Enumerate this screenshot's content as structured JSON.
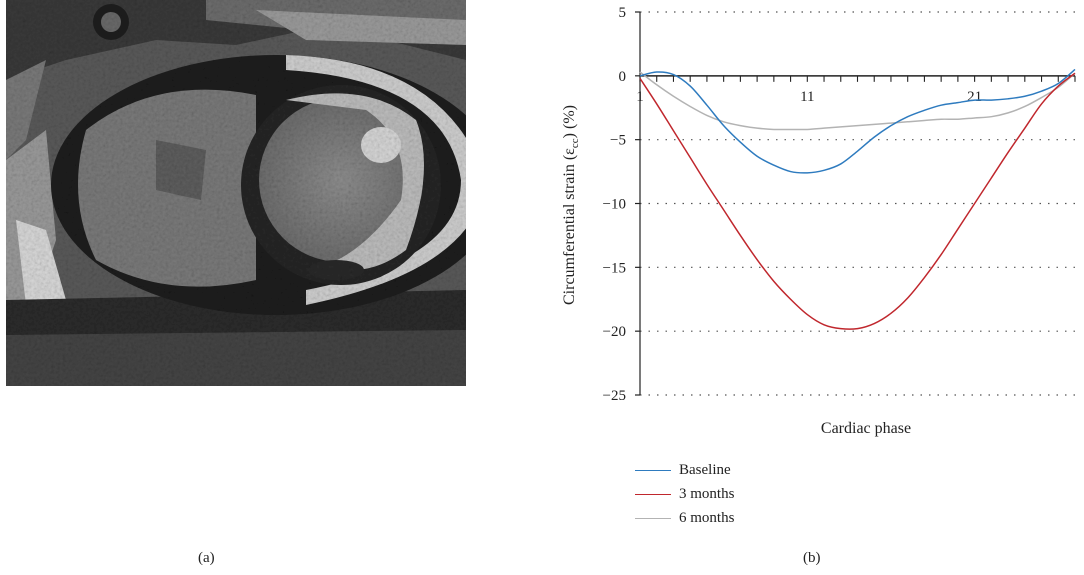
{
  "figure": {
    "panel_a_label": "(a)",
    "panel_b_label": "(b)"
  },
  "mri": {
    "description_icon": "cardiac-mri-short-axis-icon"
  },
  "chart_data": {
    "type": "line",
    "xlabel": "Cardiac phase",
    "ylabel": "Circumferential strain (ε",
    "ylabel_subscript": "cc",
    "ylabel_suffix": ") (%)",
    "xlim": [
      1,
      27
    ],
    "ylim": [
      -25,
      5
    ],
    "x_ticks": [
      1,
      11,
      21
    ],
    "y_ticks": [
      5,
      0,
      -5,
      -10,
      -15,
      -20,
      -25
    ],
    "y_tick_labels": [
      "5",
      "0",
      "−5",
      "−10",
      "−15",
      "−20",
      "−25"
    ],
    "grid": "dotted horizontal",
    "legend_position": "bottom",
    "series": [
      {
        "name": "Baseline",
        "color": "#2e7bbf",
        "x": [
          1,
          2,
          3,
          4,
          5,
          6,
          7,
          8,
          9,
          10,
          11,
          12,
          13,
          14,
          15,
          16,
          17,
          18,
          19,
          20,
          21,
          22,
          23,
          24,
          25,
          26,
          27
        ],
        "y": [
          0.0,
          0.3,
          0.1,
          -0.8,
          -2.3,
          -3.9,
          -5.2,
          -6.3,
          -7.0,
          -7.5,
          -7.6,
          -7.4,
          -6.9,
          -5.9,
          -4.8,
          -3.9,
          -3.2,
          -2.7,
          -2.3,
          -2.1,
          -1.9,
          -1.9,
          -1.8,
          -1.6,
          -1.2,
          -0.6,
          0.5
        ]
      },
      {
        "name": "3 months",
        "color": "#c0272d",
        "x": [
          1,
          2,
          3,
          4,
          5,
          6,
          7,
          8,
          9,
          10,
          11,
          12,
          13,
          14,
          15,
          16,
          17,
          18,
          19,
          20,
          21,
          22,
          23,
          24,
          25,
          26,
          27
        ],
        "y": [
          -0.2,
          -2.2,
          -4.3,
          -6.4,
          -8.5,
          -10.5,
          -12.5,
          -14.4,
          -16.1,
          -17.5,
          -18.7,
          -19.5,
          -19.8,
          -19.8,
          -19.4,
          -18.6,
          -17.4,
          -15.8,
          -14.0,
          -12.0,
          -10.0,
          -8.0,
          -6.0,
          -4.1,
          -2.2,
          -0.8,
          0.2
        ]
      },
      {
        "name": "6 months",
        "color": "#b3b3b3",
        "x": [
          1,
          2,
          3,
          4,
          5,
          6,
          7,
          8,
          9,
          10,
          11,
          12,
          13,
          14,
          15,
          16,
          17,
          18,
          19,
          20,
          21,
          22,
          23,
          24,
          25,
          26,
          27
        ],
        "y": [
          0.3,
          -0.7,
          -1.6,
          -2.4,
          -3.1,
          -3.6,
          -3.9,
          -4.1,
          -4.2,
          -4.2,
          -4.2,
          -4.1,
          -4.0,
          -3.9,
          -3.8,
          -3.7,
          -3.6,
          -3.5,
          -3.4,
          -3.4,
          -3.3,
          -3.2,
          -2.9,
          -2.4,
          -1.7,
          -0.9,
          0.2
        ]
      }
    ]
  }
}
